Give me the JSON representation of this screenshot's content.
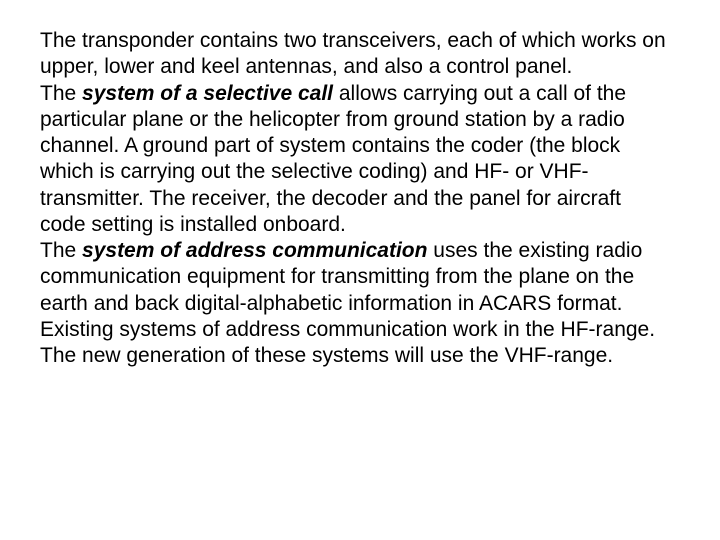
{
  "doc": {
    "p1_a": "The transponder contains two transceivers, each of which works on upper, lower and keel antennas, and also a control panel.",
    "p2_prefix": "The ",
    "p2_bold": "system of a selective call",
    "p2_rest": " allows carrying out a call of the particular plane or the helicopter from ground station by a radio channel. A ground part of system contains the coder (the block which is carrying out the selective coding) and HF- or VHF- transmitter. The receiver, the decoder and the panel for aircraft code setting is installed onboard.",
    "p3_prefix": "The ",
    "p3_bold": "system of address communication",
    "p3_rest": " uses the existing radio communication equipment for transmitting from the plane on the earth and back digital-alphabetic information in ACARS format. Existing systems of address communication work in the HF-range. The new generation of these systems will use the VHF-range."
  },
  "style": {
    "font_family": "Arial",
    "font_size_pt": 16,
    "text_color": "#000000",
    "background_color": "#ffffff"
  }
}
